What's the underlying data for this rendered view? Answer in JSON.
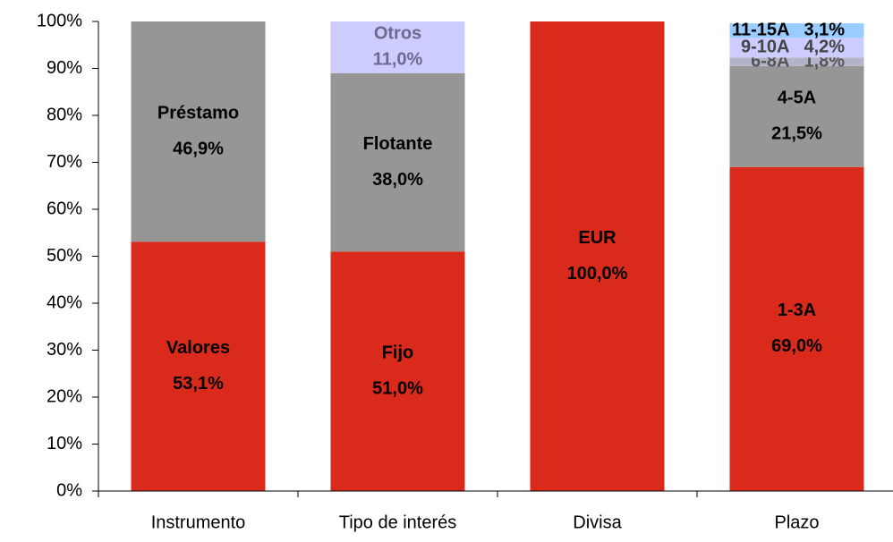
{
  "chart_data": {
    "type": "stacked-bar",
    "categories": [
      "Instrumento",
      "Tipo de interés",
      "Divisa",
      "Plazo"
    ],
    "segments": [
      [
        {
          "name": "Valores",
          "value": 53.1,
          "value_label": "53,1%",
          "color": "#d92a1c",
          "label_color": "#000000"
        },
        {
          "name": "Préstamo",
          "value": 46.9,
          "value_label": "46,9%",
          "color": "#969696",
          "label_color": "#000000"
        }
      ],
      [
        {
          "name": "Fijo",
          "value": 51.0,
          "value_label": "51,0%",
          "color": "#d92a1c",
          "label_color": "#000000"
        },
        {
          "name": "Flotante",
          "value": 38.0,
          "value_label": "38,0%",
          "color": "#969696",
          "label_color": "#000000"
        },
        {
          "name": "Otros",
          "value": 11.0,
          "value_label": "11,0%",
          "color": "#ccccff",
          "label_color": "#6b6b8f"
        }
      ],
      [
        {
          "name": "EUR",
          "value": 100.0,
          "value_label": "100,0%",
          "color": "#d92a1c",
          "label_color": "#000000"
        }
      ],
      [
        {
          "name": "1-3A",
          "value": 69.0,
          "value_label": "69,0%",
          "color": "#d92a1c",
          "label_color": "#000000"
        },
        {
          "name": "4-5A",
          "value": 21.5,
          "value_label": "21,5%",
          "color": "#969696",
          "label_color": "#000000"
        },
        {
          "name": "6-8A",
          "value": 1.8,
          "value_label": "1,8%",
          "color": "#b4b4c8",
          "label_color": "#555555"
        },
        {
          "name": "9-10A",
          "value": 4.2,
          "value_label": "4,2%",
          "color": "#ccccff",
          "label_color": "#444444"
        },
        {
          "name": "11-15A",
          "value": 3.1,
          "value_label": "3,1%",
          "color": "#99ccff",
          "label_color": "#000000"
        }
      ]
    ],
    "ylim": [
      0,
      100
    ],
    "yticks": [
      {
        "value": 0,
        "label": "0%"
      },
      {
        "value": 10,
        "label": "10%"
      },
      {
        "value": 20,
        "label": "20%"
      },
      {
        "value": 30,
        "label": "30%"
      },
      {
        "value": 40,
        "label": "40%"
      },
      {
        "value": 50,
        "label": "50%"
      },
      {
        "value": 60,
        "label": "60%"
      },
      {
        "value": 70,
        "label": "70%"
      },
      {
        "value": 80,
        "label": "80%"
      },
      {
        "value": 90,
        "label": "90%"
      },
      {
        "value": 100,
        "label": "100%"
      }
    ]
  }
}
